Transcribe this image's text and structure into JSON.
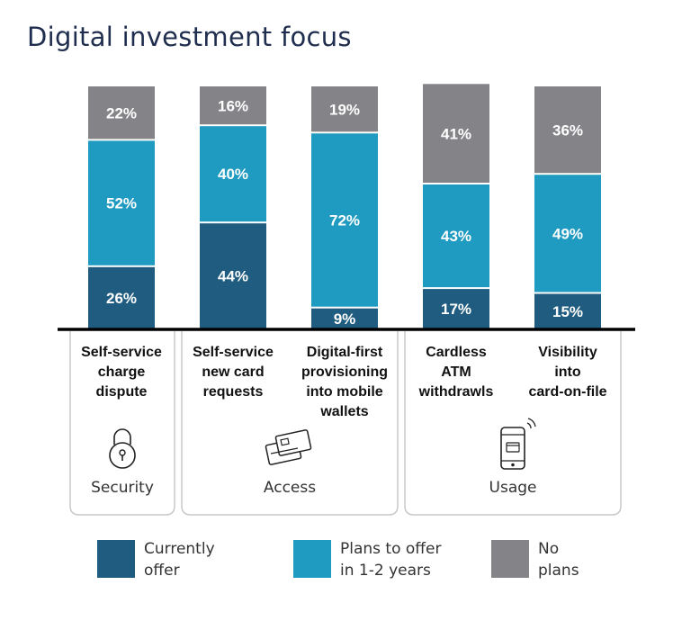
{
  "title": "Digital investment focus",
  "colors": {
    "currently_offer": "#1f5c7f",
    "plans": "#1f9ac0",
    "no_plans": "#848488",
    "axis": "#000000"
  },
  "chart_data": {
    "type": "bar",
    "stacked": true,
    "categories": [
      "Self-service charge dispute",
      "Self-service new card requests",
      "Digital-first provisioning into mobile wallets",
      "Cardless ATM withdrawls",
      "Visibility into card-on-file"
    ],
    "category_lines": [
      [
        "Self-service",
        "charge",
        "dispute"
      ],
      [
        "Self-service",
        "new card",
        "requests"
      ],
      [
        "Digital-first",
        "provisioning",
        "into mobile",
        "wallets"
      ],
      [
        "Cardless",
        "ATM",
        "withdrawls"
      ],
      [
        "Visibility",
        "into",
        "card-on-file"
      ]
    ],
    "series": [
      {
        "name": "Currently offer",
        "values": [
          26,
          44,
          9,
          17,
          15
        ],
        "labels": [
          "26%",
          "44%",
          "9%",
          "17%",
          "15%"
        ]
      },
      {
        "name": "Plans to offer in 1-2 years",
        "values": [
          52,
          40,
          72,
          43,
          49
        ],
        "labels": [
          "52%",
          "40%",
          "72%",
          "43%",
          "49%"
        ]
      },
      {
        "name": "No plans",
        "values": [
          22,
          16,
          19,
          41,
          36
        ],
        "labels": [
          "22%",
          "16%",
          "19%",
          "41%",
          "36%"
        ]
      }
    ],
    "groups": [
      {
        "label": "Security",
        "icon": "padlock-icon",
        "categories": [
          0
        ]
      },
      {
        "label": "Access",
        "icon": "cards-icon",
        "categories": [
          1,
          2
        ]
      },
      {
        "label": "Usage",
        "icon": "smartphone-icon",
        "categories": [
          3,
          4
        ]
      }
    ],
    "ylim": [
      0,
      100
    ]
  },
  "legend": [
    {
      "lines": [
        "Currently",
        "offer"
      ]
    },
    {
      "lines": [
        "Plans to offer",
        "in 1-2 years"
      ]
    },
    {
      "lines": [
        "No",
        "plans"
      ]
    }
  ]
}
